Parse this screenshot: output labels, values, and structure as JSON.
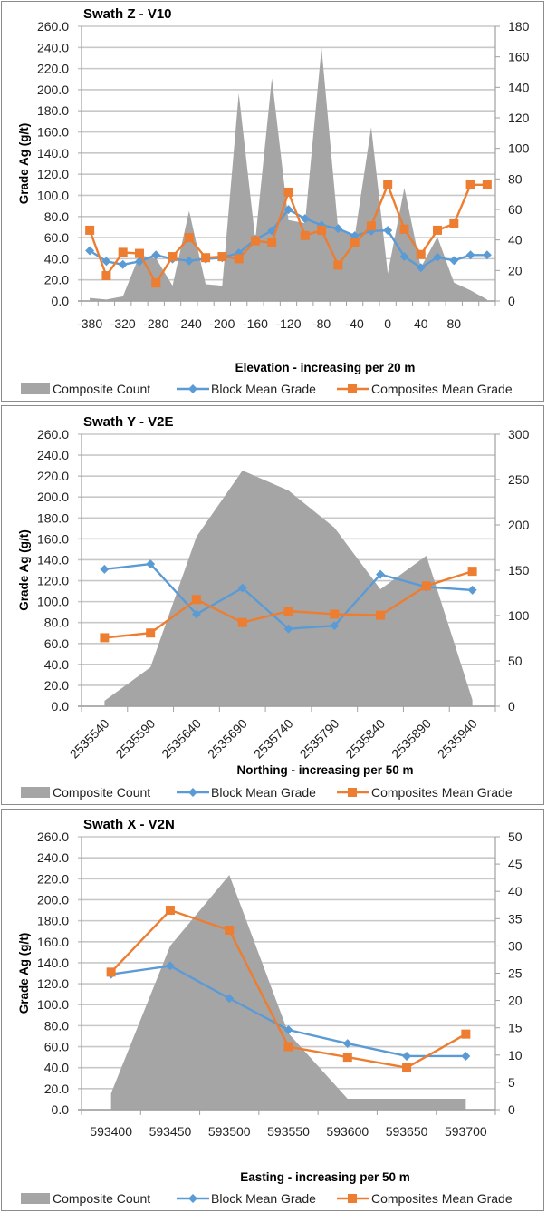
{
  "chart_data": [
    {
      "type": "area+line",
      "title": "Swath Z - V10",
      "xlabel": "Elevation - increasing per 20 m",
      "ylabel": "Grade Ag (g/t)",
      "ylim": [
        0,
        260
      ],
      "y_ticks": [
        "0.0",
        "20.0",
        "40.0",
        "60.0",
        "80.0",
        "100.0",
        "120.0",
        "140.0",
        "160.0",
        "180.0",
        "200.0",
        "220.0",
        "240.0",
        "260.0"
      ],
      "y2lim": [
        0,
        180
      ],
      "y2_ticks": [
        "0",
        "20",
        "40",
        "60",
        "80",
        "100",
        "120",
        "140",
        "160",
        "180"
      ],
      "categories": [
        -380,
        -360,
        -340,
        -320,
        -300,
        -280,
        -260,
        -240,
        -220,
        -200,
        -180,
        -160,
        -140,
        -120,
        -100,
        -80,
        -60,
        -40,
        -20,
        0,
        20,
        40,
        60,
        80,
        100
      ],
      "x_tick_labels": [
        "-380",
        "",
        "-320",
        "",
        "-280",
        "",
        "-240",
        "",
        "-200",
        "",
        "-160",
        "",
        "-120",
        "",
        "-80",
        "",
        "-40",
        "",
        "0",
        "",
        "40",
        "",
        "80",
        "",
        ""
      ],
      "grid": true,
      "legend": "bottom",
      "series": [
        {
          "name": "Composite Count",
          "type": "area",
          "axis": "right",
          "color": "#a5a5a5",
          "values": [
            2,
            1,
            3,
            30,
            28,
            10,
            59,
            11,
            10,
            136,
            40,
            146,
            53,
            51,
            166,
            47,
            42,
            114,
            18,
            74,
            22,
            42,
            12,
            7,
            1
          ]
        },
        {
          "name": "Block Mean Grade",
          "type": "line",
          "axis": "left",
          "color": "#5b9bd5",
          "marker": "diamond",
          "values": [
            47.6,
            37.5,
            34.5,
            37.4,
            43.5,
            39.8,
            38.0,
            39.8,
            41.0,
            45.4,
            58.3,
            66.5,
            86.6,
            78.0,
            71.8,
            68.5,
            61.7,
            66.2,
            66.8,
            42.0,
            31.5,
            41.4,
            38.3,
            43.5,
            43.5
          ]
        },
        {
          "name": "Composites Mean Grade",
          "type": "line",
          "axis": "left",
          "color": "#ed7d31",
          "marker": "square",
          "values": [
            67,
            24,
            46,
            45,
            17,
            42,
            60,
            41,
            42,
            40,
            57,
            55,
            103,
            62,
            67,
            34,
            55,
            71,
            110,
            68,
            44,
            67,
            73,
            110,
            110
          ]
        }
      ]
    },
    {
      "type": "area+line",
      "title": "Swath Y - V2E",
      "xlabel": "Northing - increasing per 50 m",
      "ylabel": "Grade Ag (g/t)",
      "ylim": [
        0,
        260
      ],
      "y_ticks": [
        "0.0",
        "20.0",
        "40.0",
        "60.0",
        "80.0",
        "100.0",
        "120.0",
        "140.0",
        "160.0",
        "180.0",
        "200.0",
        "220.0",
        "240.0",
        "260.0"
      ],
      "y2lim": [
        0,
        300
      ],
      "y2_ticks": [
        "0",
        "50",
        "100",
        "150",
        "200",
        "250",
        "300"
      ],
      "categories": [
        "2535540",
        "2535590",
        "2535640",
        "2535690",
        "2535740",
        "2535790",
        "2535840",
        "2535890",
        "2535940"
      ],
      "x_tick_labels": [
        "2535540",
        "2535590",
        "2535640",
        "2535690",
        "2535740",
        "2535790",
        "2535840",
        "2535890",
        "2535940"
      ],
      "grid": true,
      "legend": "bottom",
      "series": [
        {
          "name": "Composite Count",
          "type": "area",
          "axis": "right",
          "color": "#a5a5a5",
          "values": [
            6,
            43,
            187,
            260,
            238,
            197,
            129,
            166,
            7
          ]
        },
        {
          "name": "Block Mean Grade",
          "type": "line",
          "axis": "left",
          "color": "#5b9bd5",
          "marker": "diamond",
          "values": [
            131,
            136,
            88,
            113,
            74,
            77,
            126,
            114,
            111
          ]
        },
        {
          "name": "Composites Mean Grade",
          "type": "line",
          "axis": "left",
          "color": "#ed7d31",
          "marker": "square",
          "values": [
            65.5,
            70,
            102,
            80,
            91,
            88,
            87,
            115,
            129
          ]
        }
      ]
    },
    {
      "type": "area+line",
      "title": "Swath X - V2N",
      "xlabel": "Easting - increasing per 50 m",
      "ylabel": "Grade Ag (g/t)",
      "ylim": [
        0,
        260
      ],
      "y_ticks": [
        "0.0",
        "20.0",
        "40.0",
        "60.0",
        "80.0",
        "100.0",
        "120.0",
        "140.0",
        "160.0",
        "180.0",
        "200.0",
        "220.0",
        "240.0",
        "260.0"
      ],
      "y2lim": [
        0,
        50
      ],
      "y2_ticks": [
        "0",
        "5",
        "10",
        "15",
        "20",
        "25",
        "30",
        "35",
        "40",
        "45",
        "50"
      ],
      "categories": [
        "593400",
        "593450",
        "593500",
        "593550",
        "593600",
        "593650",
        "593700"
      ],
      "x_tick_labels": [
        "593400",
        "593450",
        "593500",
        "593550",
        "593600",
        "593650",
        "593700"
      ],
      "grid": true,
      "legend": "bottom",
      "series": [
        {
          "name": "Composite Count",
          "type": "area",
          "axis": "right",
          "color": "#a5a5a5",
          "values": [
            3,
            30,
            43,
            14,
            2,
            2,
            2
          ]
        },
        {
          "name": "Block Mean Grade",
          "type": "line",
          "axis": "left",
          "color": "#5b9bd5",
          "marker": "diamond",
          "values": [
            129,
            137,
            106,
            76,
            63,
            51,
            51
          ]
        },
        {
          "name": "Composites Mean Grade",
          "type": "line",
          "axis": "left",
          "color": "#ed7d31",
          "marker": "square",
          "values": [
            131,
            190,
            171,
            60,
            50,
            40,
            72
          ]
        }
      ]
    }
  ]
}
